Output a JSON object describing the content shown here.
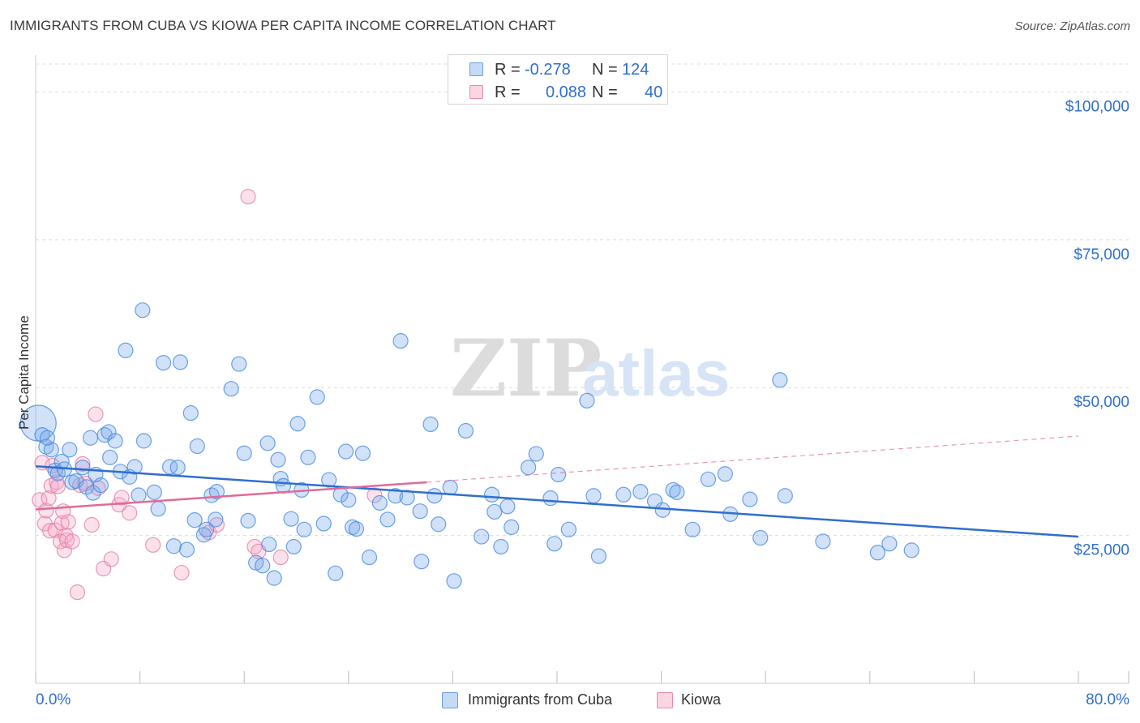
{
  "title": "IMMIGRANTS FROM CUBA VS KIOWA PER CAPITA INCOME CORRELATION CHART",
  "source": "Source: ZipAtlas.com",
  "watermark": {
    "part1": "ZIP",
    "part2": "atlas"
  },
  "stats": [
    {
      "label_r": "R =",
      "r": "-0.278",
      "label_n": "N =",
      "n": "124",
      "color": "#a8c8f0",
      "border": "#6a9fe0"
    },
    {
      "label_r": "R =",
      "r": "0.088",
      "label_n": "N =",
      "n": "40",
      "color": "#f7c0d2",
      "border": "#e88aaa"
    }
  ],
  "legend": [
    {
      "label": "Immigrants from Cuba",
      "color": "#a8c8f0",
      "border": "#6a9fe0"
    },
    {
      "label": "Kiowa",
      "color": "#f7c0d2",
      "border": "#e88aaa"
    }
  ],
  "chart_data": {
    "type": "scatter",
    "ylabel": "Per Capita Income",
    "xlim": [
      0,
      80
    ],
    "ylim": [
      0,
      105000
    ],
    "x_tick_labels": {
      "left": "0.0%",
      "right": "80.0%"
    },
    "y_ticks": [
      {
        "value": 25000,
        "label": "$25,000"
      },
      {
        "value": 50000,
        "label": "$50,000"
      },
      {
        "value": 75000,
        "label": "$75,000"
      },
      {
        "value": 100000,
        "label": "$100,000"
      }
    ],
    "grid": true,
    "colors": {
      "cuba": "#4a8be0",
      "cuba_fill": "rgba(120,170,235,0.35)",
      "kiowa": "#e47fa4",
      "kiowa_fill": "rgba(245,170,200,0.35)",
      "cuba_line": "#2f6fce",
      "kiowa_line": "#e06a96",
      "tick_text": "#2f6fce"
    },
    "series": [
      {
        "name": "Immigrants from Cuba",
        "points": [
          [
            0.2,
            44000
          ],
          [
            0.5,
            42000
          ],
          [
            0.8,
            40000
          ],
          [
            1.2,
            39500
          ],
          [
            1.5,
            36000
          ],
          [
            1.7,
            35500
          ],
          [
            2.0,
            37500
          ],
          [
            2.2,
            36200
          ],
          [
            2.6,
            39500
          ],
          [
            2.8,
            34000
          ],
          [
            3.1,
            34200
          ],
          [
            3.6,
            36500
          ],
          [
            3.9,
            33200
          ],
          [
            4.2,
            41500
          ],
          [
            4.4,
            32200
          ],
          [
            4.6,
            35300
          ],
          [
            5.0,
            33500
          ],
          [
            5.3,
            42000
          ],
          [
            5.6,
            42500
          ],
          [
            5.7,
            38200
          ],
          [
            6.1,
            41000
          ],
          [
            6.5,
            35800
          ],
          [
            6.9,
            56300
          ],
          [
            7.2,
            34900
          ],
          [
            7.6,
            36600
          ],
          [
            7.9,
            31800
          ],
          [
            8.2,
            63100
          ],
          [
            8.3,
            41000
          ],
          [
            9.1,
            32300
          ],
          [
            9.4,
            29500
          ],
          [
            9.8,
            54200
          ],
          [
            10.3,
            36600
          ],
          [
            10.6,
            23200
          ],
          [
            10.9,
            36500
          ],
          [
            11.1,
            54300
          ],
          [
            11.6,
            22600
          ],
          [
            11.9,
            45700
          ],
          [
            12.2,
            27600
          ],
          [
            12.4,
            40100
          ],
          [
            12.9,
            25100
          ],
          [
            13.1,
            26000
          ],
          [
            13.5,
            31800
          ],
          [
            13.8,
            27700
          ],
          [
            13.9,
            32400
          ],
          [
            15.0,
            49800
          ],
          [
            15.6,
            54000
          ],
          [
            16.0,
            38900
          ],
          [
            16.3,
            27500
          ],
          [
            16.9,
            20400
          ],
          [
            17.4,
            19900
          ],
          [
            17.8,
            40600
          ],
          [
            17.9,
            23500
          ],
          [
            18.3,
            17800
          ],
          [
            18.6,
            37800
          ],
          [
            18.8,
            34600
          ],
          [
            19.0,
            33400
          ],
          [
            19.6,
            27800
          ],
          [
            19.8,
            23100
          ],
          [
            20.1,
            43900
          ],
          [
            20.4,
            32700
          ],
          [
            20.6,
            26000
          ],
          [
            20.9,
            38200
          ],
          [
            21.6,
            48400
          ],
          [
            22.1,
            27000
          ],
          [
            22.5,
            34400
          ],
          [
            23.0,
            18600
          ],
          [
            23.4,
            31900
          ],
          [
            23.8,
            39200
          ],
          [
            24.0,
            31000
          ],
          [
            24.3,
            26400
          ],
          [
            24.6,
            26100
          ],
          [
            25.1,
            38900
          ],
          [
            25.6,
            21300
          ],
          [
            26.4,
            30500
          ],
          [
            27.0,
            27700
          ],
          [
            27.6,
            31700
          ],
          [
            28.0,
            57900
          ],
          [
            28.5,
            31400
          ],
          [
            29.5,
            29100
          ],
          [
            29.6,
            20600
          ],
          [
            30.3,
            43800
          ],
          [
            30.6,
            31700
          ],
          [
            30.9,
            26900
          ],
          [
            31.8,
            33100
          ],
          [
            32.1,
            17300
          ],
          [
            33.0,
            42700
          ],
          [
            34.2,
            24800
          ],
          [
            35.0,
            31900
          ],
          [
            35.2,
            29000
          ],
          [
            35.7,
            23100
          ],
          [
            36.2,
            29900
          ],
          [
            36.5,
            26400
          ],
          [
            37.8,
            36500
          ],
          [
            38.4,
            38800
          ],
          [
            39.5,
            31300
          ],
          [
            39.8,
            23600
          ],
          [
            40.1,
            35300
          ],
          [
            40.9,
            26000
          ],
          [
            42.3,
            47800
          ],
          [
            42.8,
            31700
          ],
          [
            43.2,
            21500
          ],
          [
            45.1,
            31900
          ],
          [
            46.4,
            32400
          ],
          [
            47.5,
            30800
          ],
          [
            48.1,
            29300
          ],
          [
            48.9,
            32700
          ],
          [
            49.2,
            32300
          ],
          [
            50.4,
            26000
          ],
          [
            51.6,
            34500
          ],
          [
            52.9,
            35400
          ],
          [
            53.3,
            28600
          ],
          [
            54.8,
            31100
          ],
          [
            55.6,
            24600
          ],
          [
            57.1,
            51300
          ],
          [
            57.5,
            31700
          ],
          [
            60.4,
            24000
          ],
          [
            64.6,
            22100
          ],
          [
            65.5,
            23600
          ],
          [
            67.2,
            22500
          ],
          [
            0.9,
            41500
          ]
        ]
      },
      {
        "name": "Kiowa",
        "points": [
          [
            0.3,
            31000
          ],
          [
            0.5,
            37300
          ],
          [
            0.7,
            27000
          ],
          [
            0.8,
            29200
          ],
          [
            1.0,
            31300
          ],
          [
            1.1,
            25800
          ],
          [
            1.2,
            33400
          ],
          [
            1.3,
            36800
          ],
          [
            1.5,
            25900
          ],
          [
            1.6,
            34000
          ],
          [
            1.7,
            33300
          ],
          [
            1.9,
            24000
          ],
          [
            2.0,
            27100
          ],
          [
            2.1,
            29100
          ],
          [
            2.2,
            22500
          ],
          [
            2.3,
            25000
          ],
          [
            2.4,
            24200
          ],
          [
            2.5,
            27300
          ],
          [
            2.8,
            24000
          ],
          [
            3.2,
            15400
          ],
          [
            3.4,
            33500
          ],
          [
            3.6,
            37100
          ],
          [
            3.8,
            33800
          ],
          [
            4.3,
            26800
          ],
          [
            4.6,
            45500
          ],
          [
            4.8,
            33000
          ],
          [
            5.2,
            19400
          ],
          [
            5.8,
            21000
          ],
          [
            6.4,
            30200
          ],
          [
            6.6,
            31400
          ],
          [
            7.2,
            28800
          ],
          [
            9.0,
            23400
          ],
          [
            11.2,
            18700
          ],
          [
            13.3,
            25500
          ],
          [
            13.9,
            26800
          ],
          [
            16.3,
            82300
          ],
          [
            16.8,
            23100
          ],
          [
            17.1,
            22300
          ],
          [
            18.8,
            21300
          ],
          [
            26.0,
            31800
          ]
        ]
      }
    ],
    "trendlines": [
      {
        "series": "Immigrants from Cuba",
        "x": [
          0,
          80
        ],
        "y": [
          36700,
          24800
        ]
      },
      {
        "series": "Kiowa",
        "solid_x": [
          0,
          30
        ],
        "solid_y": [
          29400,
          34000
        ],
        "dashed_x": [
          30,
          80
        ],
        "dashed_y": [
          34000,
          41800
        ]
      }
    ]
  }
}
